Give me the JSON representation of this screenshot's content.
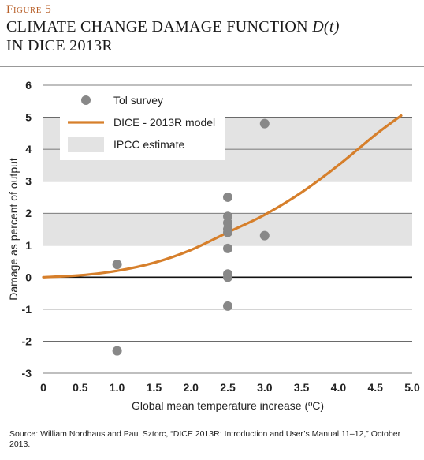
{
  "figure": {
    "label": "Figure 5",
    "title_line1": "CLIMATE CHANGE DAMAGE FUNCTION ",
    "title_italic": "D(t)",
    "title_line2": "IN DICE 2013R"
  },
  "source": "Source: William Nordhaus and Paul Sztorc, “DICE 2013R: Introduction and User’s Manual 11–12,” October 2013.",
  "colors": {
    "model_line": "#d67f2b",
    "survey_dot": "#888888",
    "ipcc_band": "#e3e3e3",
    "grid": "#555555",
    "zero_line": "#111111"
  },
  "chart_data": {
    "type": "scatter",
    "xlabel": "Global mean temperature increase (ºC)",
    "ylabel": "Damage as percent of output",
    "xlim": [
      0,
      5.0
    ],
    "ylim": [
      -3,
      6
    ],
    "x_ticks": [
      "0",
      "0.5",
      "1.0",
      "1.5",
      "2.0",
      "2.5",
      "3.0",
      "3.5",
      "4.0",
      "4.5",
      "5.0"
    ],
    "x_tick_values": [
      0,
      0.5,
      1.0,
      1.5,
      2.0,
      2.5,
      3.0,
      3.5,
      4.0,
      4.5,
      5.0
    ],
    "y_ticks": [
      "-3",
      "-2",
      "-1",
      "0",
      "1",
      "2",
      "3",
      "4",
      "5",
      "6"
    ],
    "y_tick_values": [
      -3,
      -2,
      -1,
      0,
      1,
      2,
      3,
      4,
      5,
      6
    ],
    "grid": "horizontal",
    "legend_placement": "top-left",
    "series": [
      {
        "name": "Tol survey",
        "kind": "scatter",
        "points": [
          {
            "x": 1.0,
            "y": 0.4
          },
          {
            "x": 1.0,
            "y": -2.3
          },
          {
            "x": 2.5,
            "y": 2.5
          },
          {
            "x": 2.5,
            "y": 1.9
          },
          {
            "x": 2.5,
            "y": 1.7
          },
          {
            "x": 2.5,
            "y": 1.5
          },
          {
            "x": 2.5,
            "y": 1.4
          },
          {
            "x": 2.5,
            "y": 0.9
          },
          {
            "x": 2.5,
            "y": 0.1
          },
          {
            "x": 2.5,
            "y": 0.0
          },
          {
            "x": 2.5,
            "y": -0.9
          },
          {
            "x": 3.0,
            "y": 4.8
          },
          {
            "x": 3.0,
            "y": 1.3
          }
        ]
      },
      {
        "name": "DICE - 2013R model",
        "kind": "line",
        "x": [
          0,
          0.5,
          1.0,
          1.5,
          2.0,
          2.5,
          3.0,
          3.5,
          4.0,
          4.5,
          4.85
        ],
        "y": [
          0.0,
          0.06,
          0.2,
          0.45,
          0.85,
          1.4,
          1.95,
          2.65,
          3.5,
          4.45,
          5.05
        ]
      },
      {
        "name": "IPCC estimate",
        "kind": "band",
        "bands": [
          [
            1,
            2
          ],
          [
            3,
            5
          ]
        ]
      }
    ]
  }
}
